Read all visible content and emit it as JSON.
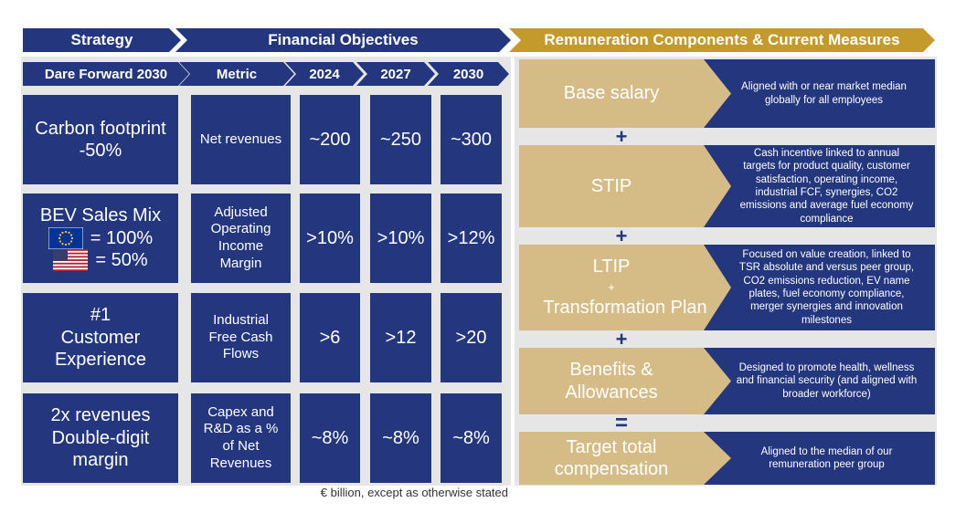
{
  "headers": {
    "strategy": "Strategy",
    "financial": "Financial Objectives",
    "remuneration": "Remuneration Components & Current Measures"
  },
  "subheaders": {
    "dare": "Dare Forward 2030",
    "metric": "Metric",
    "y2024": "2024",
    "y2027": "2027",
    "y2030": "2030"
  },
  "rows": [
    {
      "strategy": [
        "Carbon footprint",
        "-50%"
      ],
      "metric": [
        "Net revenues"
      ],
      "v2024": "~200",
      "v2027": "~250",
      "v2030": "~300"
    },
    {
      "strategy": [
        "BEV Sales Mix",
        "= 100%",
        "= 50%"
      ],
      "metric": [
        "Adjusted",
        "Operating",
        "Income",
        "Margin"
      ],
      "v2024": ">10%",
      "v2027": ">10%",
      "v2030": ">12%"
    },
    {
      "strategy": [
        "#1",
        "Customer",
        "Experience"
      ],
      "metric": [
        "Industrial",
        "Free Cash",
        "Flows"
      ],
      "v2024": ">6",
      "v2027": ">12",
      "v2030": ">20"
    },
    {
      "strategy": [
        "2x revenues",
        "Double-digit",
        "margin"
      ],
      "metric": [
        "Capex and",
        "R&D as a %",
        "of Net",
        "Revenues"
      ],
      "v2024": "~8%",
      "v2027": "~8%",
      "v2030": "~8%"
    }
  ],
  "footnote": "€ billion, except as otherwise stated",
  "components": [
    {
      "label": [
        "Base salary"
      ],
      "desc": [
        "Aligned with or near market median",
        "globally for all employees"
      ]
    },
    {
      "label": [
        "STIP"
      ],
      "desc": [
        "Cash incentive linked to annual",
        "targets for product quality, customer",
        "satisfaction, operating income,",
        "industrial FCF, synergies, CO2",
        "emissions and average fuel economy",
        "compliance"
      ]
    },
    {
      "label": [
        "LTIP",
        "+",
        "Transformation Plan"
      ],
      "desc": [
        "Focused on value creation, linked to",
        "TSR absolute and versus peer group,",
        "CO2 emissions reduction,  EV name",
        "plates, fuel economy compliance,",
        "merger synergies and innovation",
        "milestones"
      ]
    },
    {
      "label": [
        "Benefits &",
        "Allowances"
      ],
      "desc": [
        "Designed to promote health, wellness",
        "and financial security (and aligned with",
        "broader workforce)"
      ]
    },
    {
      "label": [
        "Target total",
        "compensation"
      ],
      "desc": [
        "Aligned to the median of our",
        "remuneration peer group"
      ]
    }
  ],
  "operators": [
    "+",
    "+",
    "+",
    "="
  ],
  "colors": {
    "navy": "#23367e",
    "gold": "#d5bc86",
    "arrow_gold": "#c49a2c",
    "grey": "#e6e6e6"
  }
}
